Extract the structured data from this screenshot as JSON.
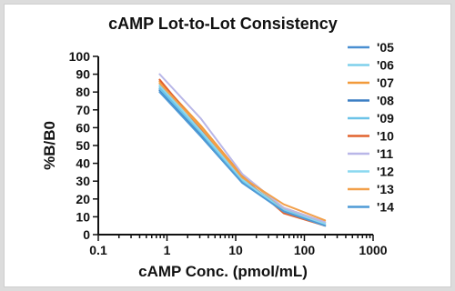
{
  "chart_data": {
    "type": "line",
    "title": "cAMP Lot-to-Lot Consistency",
    "xlabel": "cAMP Conc. (pmol/mL)",
    "ylabel": "%B/B0",
    "x_scale": "log",
    "xlim": [
      0.1,
      1000
    ],
    "ylim": [
      0,
      100
    ],
    "x_ticks": [
      {
        "value": 0.1,
        "label": "0.1"
      },
      {
        "value": 1,
        "label": "1"
      },
      {
        "value": 10,
        "label": "10"
      },
      {
        "value": 100,
        "label": "100"
      },
      {
        "value": 1000,
        "label": "1000"
      }
    ],
    "y_ticks": [
      {
        "value": 0,
        "label": "0"
      },
      {
        "value": 10,
        "label": "10"
      },
      {
        "value": 20,
        "label": "20"
      },
      {
        "value": 30,
        "label": "30"
      },
      {
        "value": 40,
        "label": "40"
      },
      {
        "value": 50,
        "label": "50"
      },
      {
        "value": 60,
        "label": "60"
      },
      {
        "value": 70,
        "label": "70"
      },
      {
        "value": 80,
        "label": "80"
      },
      {
        "value": 90,
        "label": "90"
      },
      {
        "value": 100,
        "label": "100"
      }
    ],
    "x": [
      0.78,
      3.13,
      12.5,
      50,
      200
    ],
    "grid": false,
    "legend_position": "right",
    "series": [
      {
        "name": "'05",
        "color": "#4a8fd1",
        "values": [
          82,
          57,
          31,
          14,
          6
        ]
      },
      {
        "name": "'06",
        "color": "#7fd0ec",
        "values": [
          83,
          58,
          31,
          14,
          6
        ]
      },
      {
        "name": "'07",
        "color": "#f29a3a",
        "values": [
          86,
          61,
          33,
          15,
          7
        ]
      },
      {
        "name": "'08",
        "color": "#3b7fc4",
        "values": [
          81,
          56,
          30,
          13,
          5
        ]
      },
      {
        "name": "'09",
        "color": "#6cc3e8",
        "values": [
          82,
          57,
          30,
          13,
          5
        ]
      },
      {
        "name": "'10",
        "color": "#e2632f",
        "values": [
          87,
          59,
          32,
          12,
          5
        ]
      },
      {
        "name": "'11",
        "color": "#b9b7e8",
        "values": [
          90,
          65,
          34,
          15,
          7
        ]
      },
      {
        "name": "'12",
        "color": "#8ad8f0",
        "values": [
          84,
          58,
          31,
          13,
          6
        ]
      },
      {
        "name": "'13",
        "color": "#f2a04a",
        "values": [
          85,
          60,
          32,
          17,
          8
        ]
      },
      {
        "name": "'14",
        "color": "#4f9ad6",
        "values": [
          80,
          55,
          29,
          13,
          5
        ]
      }
    ]
  }
}
